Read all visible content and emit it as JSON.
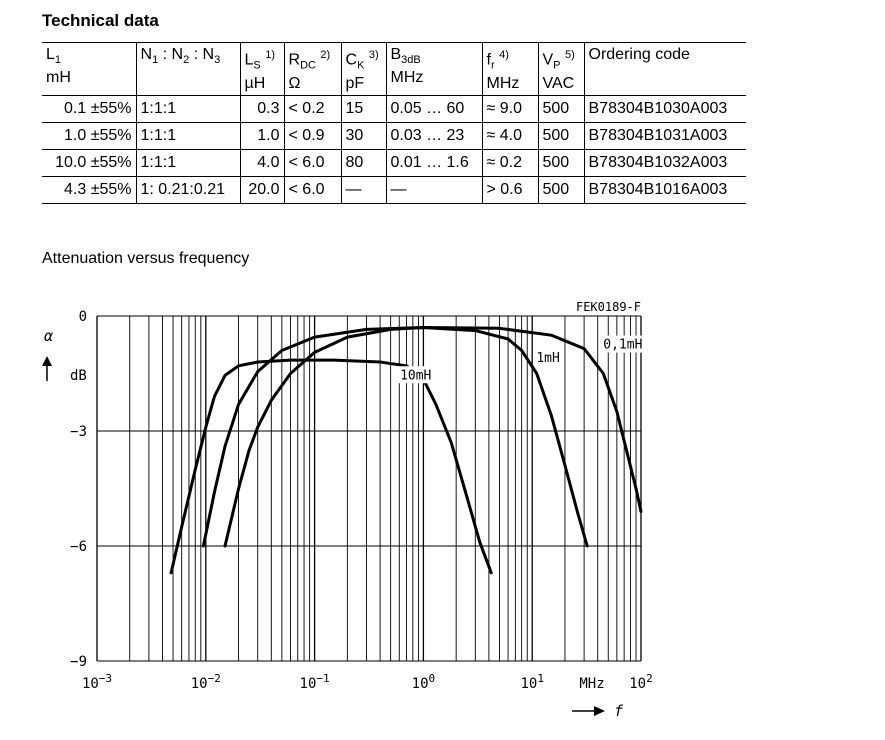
{
  "document": {
    "heading": "Technical data",
    "subheading": "Attenuation versus frequency"
  },
  "table": {
    "columns": [
      {
        "sym": "L",
        "sub": "1",
        "sup": "",
        "unit": "mH"
      },
      {
        "sym": "N",
        "sub": "1",
        "sup": "",
        "unit": "",
        "rest": " : N2 : N3"
      },
      {
        "sym": "L",
        "sub": "S",
        "sup": "1)",
        "unit": "µH"
      },
      {
        "sym": "R",
        "sub": "DC",
        "sup": "2)",
        "unit": "Ω"
      },
      {
        "sym": "C",
        "sub": "K",
        "sup": "3)",
        "unit": "pF"
      },
      {
        "sym": "B",
        "sub": "3dB",
        "sup": "",
        "unit": "MHz"
      },
      {
        "sym": "f",
        "sub": "r",
        "sup": "4)",
        "unit": "MHz"
      },
      {
        "sym": "V",
        "sub": "P",
        "sup": "5)",
        "unit": "VAC"
      },
      {
        "sym": "Ordering code",
        "sub": "",
        "sup": "",
        "unit": ""
      }
    ],
    "n_header": {
      "n1": "N",
      "s1": "1",
      "n2": " : N",
      "s2": "2",
      "n3": " : N",
      "s3": "3"
    },
    "rows": [
      [
        "0.1 ±55%",
        "1:1:1",
        "0.3",
        "< 0.2",
        "15",
        "0.05 … 60",
        "≈ 9.0",
        "500",
        "B78304B1030A003"
      ],
      [
        "1.0 ±55%",
        "1:1:1",
        "1.0",
        "< 0.9",
        "30",
        "0.03 … 23",
        "≈ 4.0",
        "500",
        "B78304B1031A003"
      ],
      [
        "10.0 ±55%",
        "1:1:1",
        "4.0",
        "< 6.0",
        "80",
        "0.01 … 1.6",
        "≈ 0.2",
        "500",
        "B78304B1032A003"
      ],
      [
        "4.3 ±55%",
        "1: 0.21:0.21",
        "20.0",
        "< 6.0",
        "—",
        "—",
        "> 0.6",
        "500",
        "B78304B1016A003"
      ]
    ]
  },
  "chart_data": {
    "type": "line",
    "code": "FEK0189-F",
    "ylabel_symbol": "α",
    "ylabel_unit": "dB",
    "xlabel_unit": "MHz",
    "xlabel_symbol": "f",
    "x_scale": "log",
    "xlim": [
      0.001,
      100
    ],
    "ylim": [
      -9,
      0
    ],
    "y_ticks": [
      "0",
      "−3",
      "−6",
      "−9"
    ],
    "x_ticks": [
      {
        "base": "10",
        "exp": "−3"
      },
      {
        "base": "10",
        "exp": "−2"
      },
      {
        "base": "10",
        "exp": "−1"
      },
      {
        "base": "10",
        "exp": "0"
      },
      {
        "base": "10",
        "exp": "1"
      },
      {
        "base": "10",
        "exp": "2"
      }
    ],
    "grid": true,
    "series": [
      {
        "name": "10mH",
        "points": [
          [
            0.0048,
            -6.7
          ],
          [
            0.006,
            -5.5
          ],
          [
            0.008,
            -4.0
          ],
          [
            0.01,
            -2.9
          ],
          [
            0.012,
            -2.1
          ],
          [
            0.015,
            -1.55
          ],
          [
            0.02,
            -1.3
          ],
          [
            0.03,
            -1.2
          ],
          [
            0.06,
            -1.15
          ],
          [
            0.15,
            -1.15
          ],
          [
            0.4,
            -1.2
          ],
          [
            0.7,
            -1.3
          ],
          [
            1.0,
            -1.65
          ],
          [
            1.3,
            -2.3
          ],
          [
            1.8,
            -3.3
          ],
          [
            2.5,
            -4.7
          ],
          [
            3.3,
            -5.9
          ],
          [
            4.2,
            -6.7
          ]
        ]
      },
      {
        "name": "1mH",
        "points": [
          [
            0.0095,
            -6.0
          ],
          [
            0.012,
            -4.6
          ],
          [
            0.015,
            -3.4
          ],
          [
            0.02,
            -2.3
          ],
          [
            0.03,
            -1.45
          ],
          [
            0.05,
            -0.9
          ],
          [
            0.1,
            -0.55
          ],
          [
            0.3,
            -0.35
          ],
          [
            1.0,
            -0.3
          ],
          [
            3,
            -0.38
          ],
          [
            6,
            -0.6
          ],
          [
            8,
            -0.9
          ],
          [
            11,
            -1.5
          ],
          [
            15,
            -2.6
          ],
          [
            20,
            -3.9
          ],
          [
            26,
            -5.1
          ],
          [
            32,
            -6.0
          ]
        ]
      },
      {
        "name": "0,1mH",
        "points": [
          [
            0.015,
            -6.0
          ],
          [
            0.02,
            -4.5
          ],
          [
            0.025,
            -3.5
          ],
          [
            0.03,
            -2.9
          ],
          [
            0.04,
            -2.2
          ],
          [
            0.06,
            -1.5
          ],
          [
            0.1,
            -0.95
          ],
          [
            0.2,
            -0.55
          ],
          [
            0.5,
            -0.35
          ],
          [
            1.0,
            -0.3
          ],
          [
            5,
            -0.32
          ],
          [
            15,
            -0.5
          ],
          [
            30,
            -0.85
          ],
          [
            45,
            -1.5
          ],
          [
            60,
            -2.5
          ],
          [
            75,
            -3.6
          ],
          [
            90,
            -4.5
          ],
          [
            100,
            -5.1
          ]
        ]
      }
    ]
  }
}
